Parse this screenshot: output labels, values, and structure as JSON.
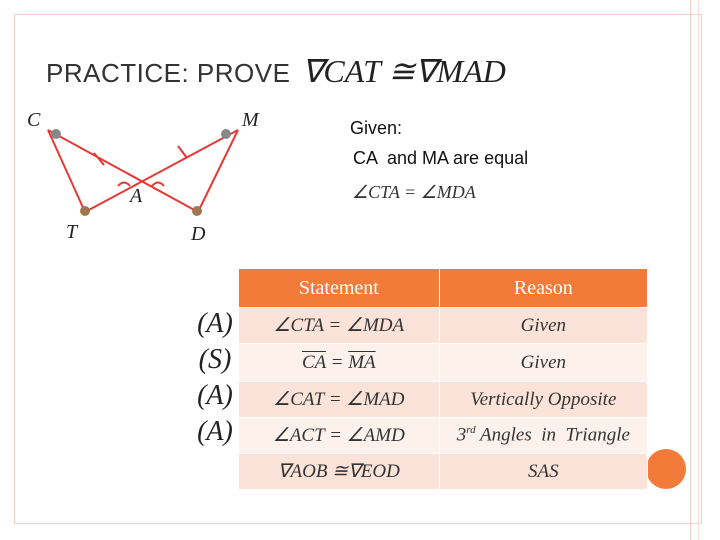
{
  "slide": {
    "title": "PRACTICE: PROVE",
    "title_math": "∇CAT ≅∇MAD",
    "given_heading": "Given:",
    "given_line1": "CA  and MA are equal",
    "given_line2": "∠CTA = ∠MDA",
    "accent_color": "#f37b3a"
  },
  "diagram": {
    "vertices": [
      "C",
      "M",
      "A",
      "T",
      "D"
    ]
  },
  "proof_table": {
    "header_statement": "Statement",
    "header_reason": "Reason",
    "rows": [
      {
        "code": "(A)",
        "statement": "∠CTA = ∠MDA",
        "reason": "Given"
      },
      {
        "code": "(S)",
        "statement_part1": "CA",
        "statement_eq": " = ",
        "statement_part2": "MA",
        "reason": "Given"
      },
      {
        "code": "(A)",
        "statement": "∠CAT = ∠MAD",
        "reason": "Vertically Opposite"
      },
      {
        "code": "(A)",
        "statement": "∠ACT = ∠AMD",
        "reason_ordinal": "3",
        "reason_sup": "rd",
        "reason_rest": " Angles  in  Triangle"
      },
      {
        "code": "",
        "statement": "∇AOB ≅∇EOD",
        "reason": "SAS"
      }
    ]
  }
}
